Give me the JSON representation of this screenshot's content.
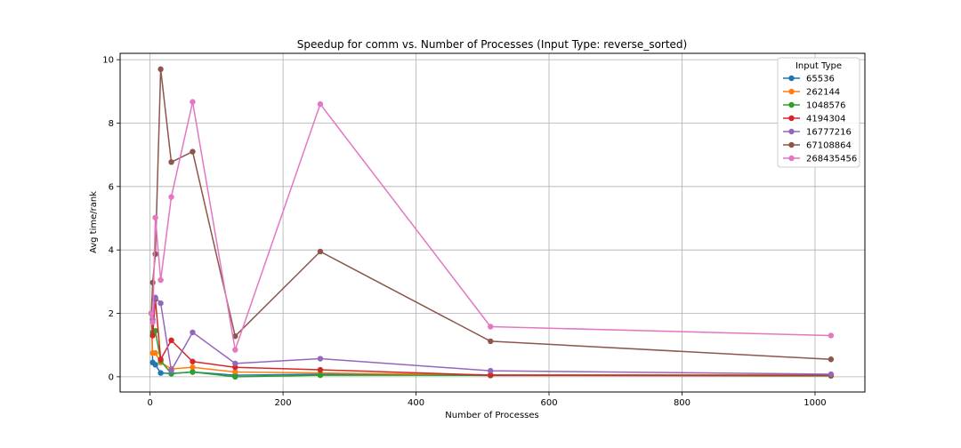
{
  "chart_data": {
    "type": "line",
    "title": "Speedup for comm vs. Number of Processes (Input Type: reverse_sorted)",
    "xlabel": "Number of Processes",
    "ylabel": "Avg time/rank",
    "xlim": [
      -45,
      1075
    ],
    "ylim": [
      -0.48,
      10.2
    ],
    "xticks": [
      0,
      200,
      400,
      600,
      800,
      1000
    ],
    "yticks": [
      0,
      2,
      4,
      6,
      8,
      10
    ],
    "grid": true,
    "legend": {
      "title": "Input Type",
      "placement": "top-right"
    },
    "x": [
      2,
      4,
      8,
      16,
      32,
      64,
      128,
      256,
      512,
      1024
    ],
    "series": [
      {
        "name": "65536",
        "color": "#1f77b4",
        "values": [
          2.0,
          0.45,
          0.38,
          0.12,
          0.1,
          0.15,
          0.05,
          0.08,
          0.04,
          0.04
        ]
      },
      {
        "name": "262144",
        "color": "#ff7f0e",
        "values": [
          2.0,
          0.75,
          0.75,
          0.45,
          0.25,
          0.3,
          0.15,
          0.12,
          0.06,
          0.05
        ]
      },
      {
        "name": "1048576",
        "color": "#2ca02c",
        "values": [
          2.0,
          1.4,
          1.45,
          0.5,
          0.1,
          0.15,
          0.0,
          0.05,
          0.05,
          0.03
        ]
      },
      {
        "name": "4194304",
        "color": "#d62728",
        "values": [
          2.0,
          1.3,
          2.45,
          0.55,
          1.15,
          0.48,
          0.3,
          0.22,
          0.05,
          0.05
        ]
      },
      {
        "name": "16777216",
        "color": "#9467bd",
        "values": [
          2.0,
          1.8,
          2.5,
          2.32,
          0.2,
          1.4,
          0.42,
          0.57,
          0.19,
          0.08
        ]
      },
      {
        "name": "67108864",
        "color": "#8c564b",
        "values": [
          2.0,
          2.97,
          3.87,
          9.7,
          6.77,
          7.1,
          1.28,
          3.95,
          1.12,
          0.55
        ]
      },
      {
        "name": "268435456",
        "color": "#e377c2",
        "values": [
          2.0,
          1.72,
          5.02,
          3.05,
          5.67,
          8.67,
          0.85,
          8.6,
          1.58,
          1.3
        ]
      }
    ]
  }
}
